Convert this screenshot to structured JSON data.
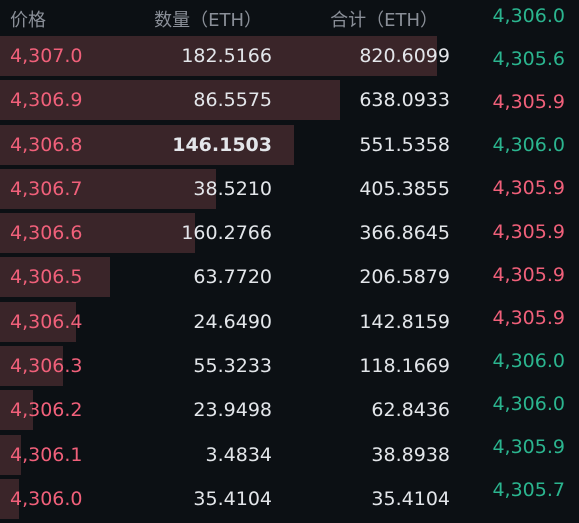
{
  "header": {
    "price": "价格",
    "quantity": "数量（ETH）",
    "total": "合计（ETH）"
  },
  "colors": {
    "ask": "#f0607a",
    "bid": "#2bb58f",
    "depth_bar": "#3a2529",
    "background": "#0c1014"
  },
  "depth_max_total": 820.6099,
  "asks": [
    {
      "price": "4,307.0",
      "quantity": "182.5166",
      "total": "820.6099"
    },
    {
      "price": "4,306.9",
      "quantity": "86.5575",
      "total": "638.0933"
    },
    {
      "price": "4,306.8",
      "quantity": "146.1503",
      "total": "551.5358",
      "emphasis": true
    },
    {
      "price": "4,306.7",
      "quantity": "38.5210",
      "total": "405.3855"
    },
    {
      "price": "4,306.6",
      "quantity": "160.2766",
      "total": "366.8645"
    },
    {
      "price": "4,306.5",
      "quantity": "63.7720",
      "total": "206.5879"
    },
    {
      "price": "4,306.4",
      "quantity": "24.6490",
      "total": "142.8159"
    },
    {
      "price": "4,306.3",
      "quantity": "55.3233",
      "total": "118.1669"
    },
    {
      "price": "4,306.2",
      "quantity": "23.9498",
      "total": "62.8436"
    },
    {
      "price": "4,306.1",
      "quantity": "3.4834",
      "total": "38.8938"
    },
    {
      "price": "4,306.0",
      "quantity": "35.4104",
      "total": "35.4104"
    }
  ],
  "trades": [
    {
      "price": "4,306.0",
      "side": "buy"
    },
    {
      "price": "4,305.6",
      "side": "buy"
    },
    {
      "price": "4,305.9",
      "side": "sell"
    },
    {
      "price": "4,306.0",
      "side": "buy"
    },
    {
      "price": "4,305.9",
      "side": "sell"
    },
    {
      "price": "4,305.9",
      "side": "sell"
    },
    {
      "price": "4,305.9",
      "side": "sell"
    },
    {
      "price": "4,305.9",
      "side": "sell"
    },
    {
      "price": "4,306.0",
      "side": "buy"
    },
    {
      "price": "4,306.0",
      "side": "buy"
    },
    {
      "price": "4,305.9",
      "side": "buy"
    },
    {
      "price": "4,305.7",
      "side": "buy"
    }
  ]
}
